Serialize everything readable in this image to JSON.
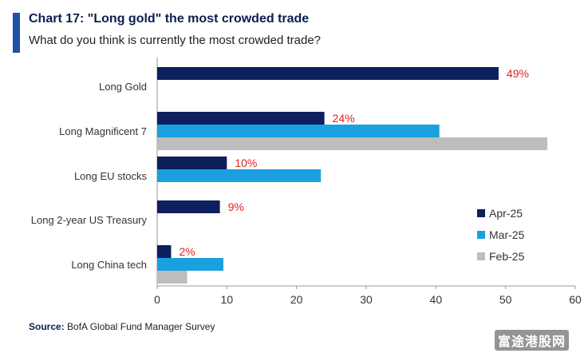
{
  "header": {
    "title": "Chart 17: \"Long gold\" the most crowded trade",
    "subtitle": "What do you think is currently the most crowded trade?"
  },
  "footer": {
    "source_label": "Source:",
    "source_text": "BofA Global Fund Manager Survey",
    "watermark": "富途港股网"
  },
  "colors": {
    "accent": "#1f4fa8",
    "apr": "#0d1f5c",
    "mar": "#1aa0df",
    "feb": "#bdbdbd",
    "data_label": "#e02020",
    "text": "#333333"
  },
  "chart_data": {
    "type": "bar",
    "orientation": "horizontal",
    "categories": [
      "Long Gold",
      "Long Magnificent 7",
      "Long EU stocks",
      "Long 2-year US Treasury",
      "Long China tech"
    ],
    "series": [
      {
        "name": "Apr-25",
        "values": [
          49,
          24,
          10,
          9,
          2
        ],
        "labels": [
          "49%",
          "24%",
          "10%",
          "9%",
          "2%"
        ]
      },
      {
        "name": "Mar-25",
        "values": [
          null,
          40.5,
          23.5,
          null,
          9.5
        ]
      },
      {
        "name": "Feb-25",
        "values": [
          null,
          56,
          null,
          null,
          4.3
        ]
      }
    ],
    "xlim": [
      0,
      60
    ],
    "xticks": [
      "0",
      "10",
      "20",
      "30",
      "40",
      "50",
      "60"
    ],
    "legend_position": "right",
    "grid": false
  }
}
